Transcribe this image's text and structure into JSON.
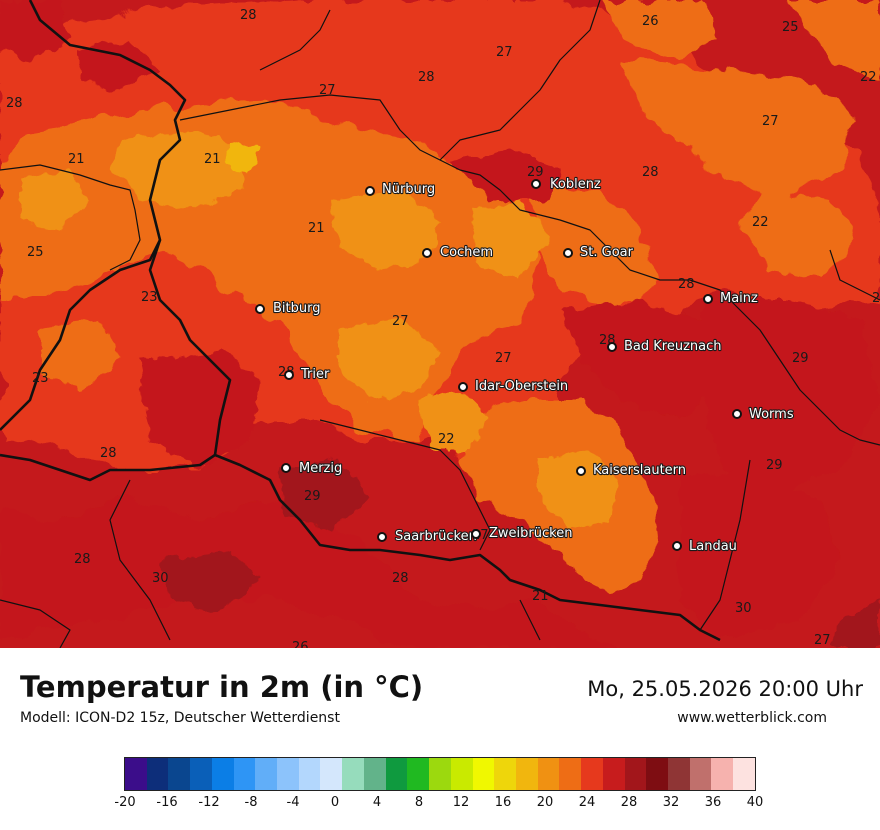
{
  "header": {
    "title": "Temperatur in 2m (in °C)",
    "subtitle": "Modell: ICON-D2 15z, Deutscher Wetterdienst",
    "datetime": "Mo, 25.05.2026 20:00 Uhr",
    "site": "www.wetterblick.com"
  },
  "map": {
    "cities": [
      {
        "name": "Nürburg"
      },
      {
        "name": "Koblenz"
      },
      {
        "name": "Cochem"
      },
      {
        "name": "St. Goar"
      },
      {
        "name": "Bitburg"
      },
      {
        "name": "Mainz"
      },
      {
        "name": "Bad Kreuznach"
      },
      {
        "name": "Trier"
      },
      {
        "name": "Idar-Oberstein"
      },
      {
        "name": "Worms"
      },
      {
        "name": "Merzig"
      },
      {
        "name": "Kaiserslautern"
      },
      {
        "name": "Saarbrücken"
      },
      {
        "name": "Zweibrücken"
      },
      {
        "name": "Landau"
      }
    ],
    "temperature_labels": [
      "28",
      "26",
      "25",
      "22",
      "27",
      "27",
      "28",
      "28",
      "27",
      "21",
      "21",
      "29",
      "28",
      "22",
      "21",
      "25",
      "28",
      "23",
      "27",
      "28",
      "29",
      "23",
      "28",
      "27",
      "29",
      "22",
      "28",
      "29",
      "29",
      "28",
      "27",
      "30",
      "28",
      "21",
      "30",
      "27",
      "26"
    ]
  },
  "legend": {
    "colors": [
      "#3b0d8a",
      "#0d2e7a",
      "#0a468f",
      "#0a5fb8",
      "#0b7ee6",
      "#2e95f5",
      "#61aef8",
      "#8cc3fb",
      "#b3d7fd",
      "#d4e7fc",
      "#96dcbc",
      "#62b38a",
      "#0f9a3f",
      "#20b921",
      "#9cd90e",
      "#c9ea00",
      "#f0f800",
      "#eed60b",
      "#f1b60e",
      "#f09112",
      "#ee6d15",
      "#e6391d",
      "#c71c1d",
      "#a2161b",
      "#7e0d12",
      "#8f3535",
      "#c0706c",
      "#f6b2ae",
      "#fde2e0"
    ],
    "ticks": [
      "-20",
      "-16",
      "-12",
      "-8",
      "-4",
      "0",
      "4",
      "8",
      "12",
      "16",
      "20",
      "24",
      "28",
      "32",
      "36",
      "40"
    ]
  },
  "colors": {
    "warm_dark": "#c4191c",
    "warm_mid": "#e6391d",
    "warm_orange": "#ee6d15",
    "warm_light": "#f09112"
  }
}
